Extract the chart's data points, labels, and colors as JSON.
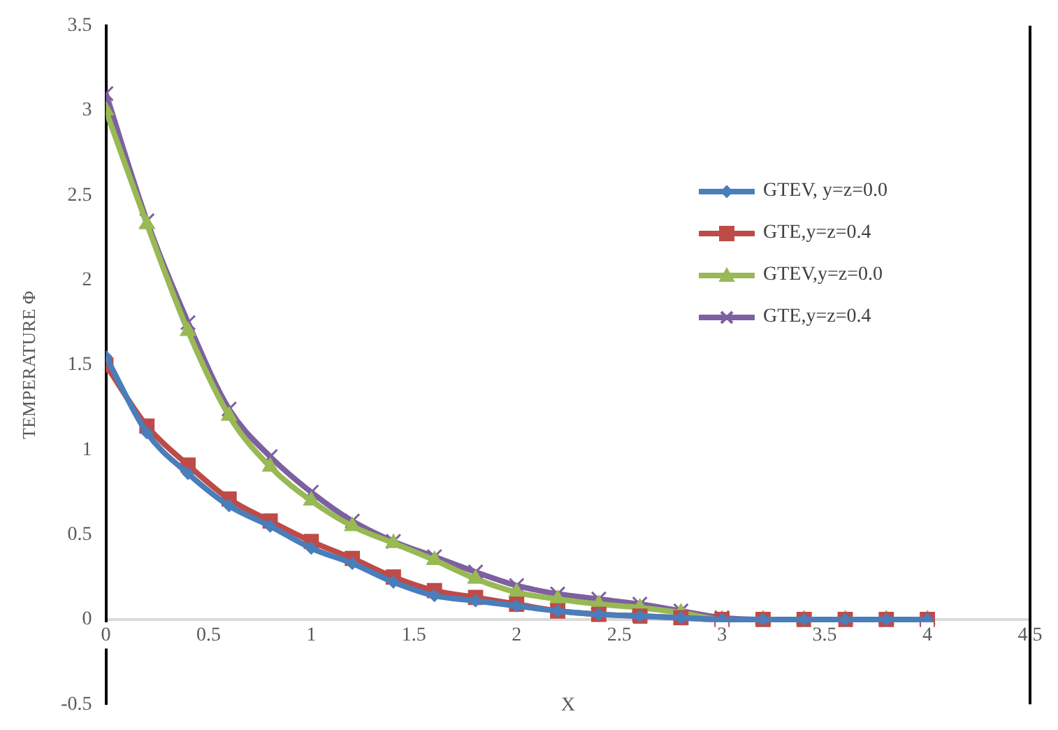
{
  "chart_data": {
    "type": "line",
    "xlabel": "X",
    "ylabel": "TEMPERATURE Φ",
    "x": [
      0,
      0.2,
      0.4,
      0.6,
      0.8,
      1.0,
      1.2,
      1.4,
      1.6,
      1.8,
      2.0,
      2.2,
      2.4,
      2.6,
      2.8,
      3.0,
      3.2,
      3.4,
      3.6,
      3.8,
      4.0
    ],
    "xlim": [
      0,
      4.5
    ],
    "xticks": [
      0,
      0.5,
      1,
      1.5,
      2,
      2.5,
      3,
      3.5,
      4,
      4.5
    ],
    "ylim": [
      -0.5,
      3.5
    ],
    "yticks": [
      -0.5,
      0,
      0.5,
      1,
      1.5,
      2,
      2.5,
      3,
      3.5
    ],
    "grid": false,
    "legend": "right",
    "series": [
      {
        "name": "GTEV, y=z=0.0",
        "color": "#4a7ebb",
        "marker": "diamond",
        "values": [
          1.55,
          1.1,
          0.86,
          0.67,
          0.55,
          0.42,
          0.33,
          0.22,
          0.14,
          0.11,
          0.08,
          0.05,
          0.03,
          0.02,
          0.01,
          0,
          0,
          0,
          0,
          0,
          0
        ]
      },
      {
        "name": "GTE,y=z=0.4",
        "color": "#be4b48",
        "marker": "square",
        "values": [
          1.5,
          1.14,
          0.91,
          0.71,
          0.58,
          0.46,
          0.36,
          0.25,
          0.17,
          0.13,
          0.09,
          0.05,
          0.03,
          0.02,
          0.01,
          0,
          0,
          0,
          0,
          0,
          0
        ]
      },
      {
        "name": "GTEV,y=z=0.0",
        "color": "#98b954",
        "marker": "triangle",
        "values": [
          3.0,
          2.33,
          1.7,
          1.2,
          0.9,
          0.7,
          0.55,
          0.45,
          0.35,
          0.24,
          0.16,
          0.12,
          0.09,
          0.07,
          0.04,
          0,
          0,
          0,
          0,
          0,
          0
        ]
      },
      {
        "name": "GTE,y=z=0.4",
        "color": "#7d60a0",
        "marker": "cross",
        "values": [
          3.1,
          2.35,
          1.75,
          1.24,
          0.96,
          0.75,
          0.58,
          0.46,
          0.37,
          0.28,
          0.2,
          0.15,
          0.12,
          0.09,
          0.05,
          0.01,
          0,
          0,
          0,
          0,
          0
        ]
      }
    ]
  }
}
